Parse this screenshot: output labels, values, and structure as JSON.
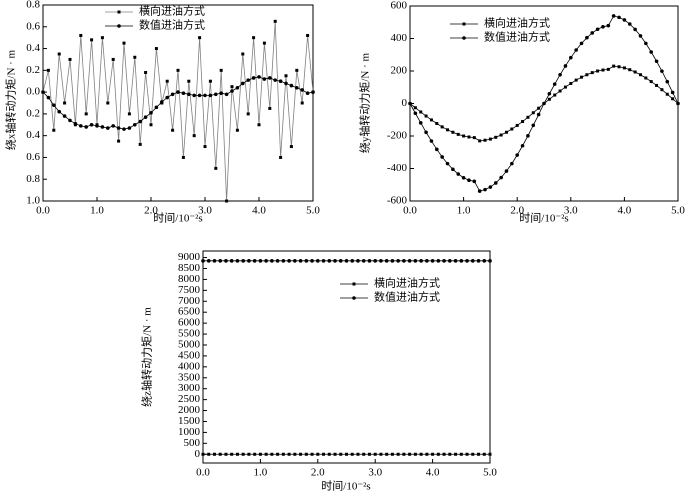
{
  "chart_data": [
    {
      "type": "line",
      "x_label": "时间/10⁻²s",
      "y_label": "绕x轴转动力矩/N · m",
      "x": [
        0,
        0.1,
        0.2,
        0.3,
        0.4,
        0.5,
        0.6,
        0.7,
        0.8,
        0.9,
        1,
        1.1,
        1.2,
        1.3,
        1.4,
        1.5,
        1.6,
        1.7,
        1.8,
        1.9,
        2,
        2.1,
        2.2,
        2.3,
        2.4,
        2.5,
        2.6,
        2.7,
        2.8,
        2.9,
        3,
        3.1,
        3.2,
        3.3,
        3.4,
        3.5,
        3.6,
        3.7,
        3.8,
        3.9,
        4,
        4.1,
        4.2,
        4.3,
        4.4,
        4.5,
        4.6,
        4.7,
        4.8,
        4.9,
        5
      ],
      "series": [
        {
          "name": "横向进油方式",
          "color": "#808080",
          "marker": "square",
          "values": [
            0,
            0.2,
            -0.35,
            0.35,
            -0.1,
            0.3,
            -0.3,
            0.52,
            -0.2,
            0.48,
            -0.3,
            0.5,
            -0.1,
            0.3,
            -0.45,
            0.45,
            -0.2,
            0.32,
            -0.48,
            0.18,
            -0.3,
            0.4,
            -0.1,
            0.1,
            -0.35,
            0.2,
            -0.6,
            0.1,
            -0.4,
            0.5,
            -0.5,
            0.1,
            -0.7,
            0.2,
            -1.0,
            0.05,
            -0.35,
            0.35,
            -0.2,
            0.5,
            -0.3,
            0.45,
            -0.15,
            0.65,
            -0.6,
            0.15,
            -0.5,
            0.2,
            -0.1,
            0.52,
            0
          ]
        },
        {
          "name": "数值进油方式",
          "color": "#000000",
          "marker": "circle",
          "values": [
            0,
            -0.05,
            -0.12,
            -0.18,
            -0.22,
            -0.26,
            -0.29,
            -0.31,
            -0.32,
            -0.3,
            -0.31,
            -0.32,
            -0.33,
            -0.31,
            -0.33,
            -0.34,
            -0.33,
            -0.3,
            -0.27,
            -0.23,
            -0.19,
            -0.14,
            -0.09,
            -0.05,
            -0.02,
            0,
            -0.01,
            -0.02,
            -0.03,
            -0.03,
            -0.03,
            -0.03,
            -0.02,
            -0.01,
            -0.02,
            0.01,
            0.04,
            0.08,
            0.11,
            0.13,
            0.14,
            0.12,
            0.13,
            0.11,
            0.1,
            0.08,
            0.06,
            0.04,
            0.02,
            -0.01,
            0
          ]
        }
      ],
      "xlim": [
        0,
        5
      ],
      "xticks": [
        {
          "value": 0,
          "label": "0.0"
        },
        {
          "value": 1,
          "label": "1.0"
        },
        {
          "value": 2,
          "label": "2.0"
        },
        {
          "value": 3,
          "label": "3.0"
        },
        {
          "value": 4,
          "label": "4.0"
        },
        {
          "value": 5,
          "label": "5.0"
        }
      ],
      "ylim": [
        -1.0,
        0.8
      ],
      "yticks": [
        0.8,
        0.6,
        0.4,
        0.2,
        {
          "value": 0,
          "label": "0.0"
        },
        {
          "value": -0.2,
          "label": "0.2"
        },
        {
          "value": -0.4,
          "label": "0.4"
        },
        {
          "value": -0.6,
          "label": "0.6"
        },
        {
          "value": -0.8,
          "label": "0.8"
        },
        {
          "value": -1.0,
          "label": "1.0"
        }
      ]
    },
    {
      "type": "line",
      "x_label": "时间/10⁻²s",
      "y_label": "绕y轴转动力矩/N · m",
      "x": [
        0,
        0.1,
        0.2,
        0.3,
        0.4,
        0.5,
        0.6,
        0.7,
        0.8,
        0.9,
        1,
        1.1,
        1.2,
        1.3,
        1.4,
        1.5,
        1.6,
        1.7,
        1.8,
        1.9,
        2,
        2.1,
        2.2,
        2.3,
        2.4,
        2.5,
        2.6,
        2.7,
        2.8,
        2.9,
        3,
        3.1,
        3.2,
        3.3,
        3.4,
        3.5,
        3.6,
        3.7,
        3.8,
        3.9,
        4,
        4.1,
        4.2,
        4.3,
        4.4,
        4.5,
        4.6,
        4.7,
        4.8,
        4.9,
        5
      ],
      "series": [
        {
          "name": "横向进油方式",
          "color": "#000000",
          "marker": "square",
          "values": [
            0,
            -26,
            -52,
            -77,
            -101,
            -123,
            -144,
            -162,
            -177,
            -190,
            -200,
            -206,
            -210,
            -230,
            -226,
            -219,
            -208,
            -194,
            -177,
            -157,
            -135,
            -111,
            -85,
            -57,
            -29,
            0,
            26,
            52,
            77,
            101,
            123,
            144,
            162,
            177,
            190,
            200,
            206,
            210,
            230,
            226,
            219,
            208,
            194,
            177,
            157,
            135,
            111,
            85,
            57,
            29,
            0
          ]
        },
        {
          "name": "数值进油方式",
          "color": "#000000",
          "marker": "circle",
          "values": [
            0,
            -60,
            -119,
            -177,
            -231,
            -282,
            -329,
            -370,
            -405,
            -434,
            -457,
            -472,
            -479,
            -539,
            -530,
            -514,
            -489,
            -456,
            -416,
            -370,
            -317,
            -260,
            -199,
            -134,
            -68,
            0,
            60,
            119,
            177,
            231,
            282,
            329,
            370,
            405,
            434,
            457,
            472,
            479,
            539,
            530,
            514,
            489,
            456,
            416,
            370,
            317,
            260,
            199,
            134,
            68,
            0
          ]
        }
      ],
      "xlim": [
        0,
        5
      ],
      "xticks": [
        {
          "value": 0,
          "label": "0.0"
        },
        {
          "value": 1,
          "label": "1.0"
        },
        {
          "value": 2,
          "label": "2.0"
        },
        {
          "value": 3,
          "label": "3.0"
        },
        {
          "value": 4,
          "label": "4.0"
        },
        {
          "value": 5,
          "label": "5.0"
        }
      ],
      "ylim": [
        -600,
        600
      ],
      "yticks": [
        600,
        400,
        200,
        0,
        -200,
        -400,
        -600
      ]
    },
    {
      "type": "line",
      "x_label": "时间/10⁻²s",
      "y_label": "绕z轴转动力矩/N · m",
      "x": [
        0,
        0.1,
        0.2,
        0.3,
        0.4,
        0.5,
        0.6,
        0.7,
        0.8,
        0.9,
        1,
        1.1,
        1.2,
        1.3,
        1.4,
        1.5,
        1.6,
        1.7,
        1.8,
        1.9,
        2,
        2.1,
        2.2,
        2.3,
        2.4,
        2.5,
        2.6,
        2.7,
        2.8,
        2.9,
        3,
        3.1,
        3.2,
        3.3,
        3.4,
        3.5,
        3.6,
        3.7,
        3.8,
        3.9,
        4,
        4.1,
        4.2,
        4.3,
        4.4,
        4.5,
        4.6,
        4.7,
        4.8,
        4.9,
        5
      ],
      "series": [
        {
          "name": "横向进油方式",
          "color": "#000000",
          "marker": "square",
          "values": [
            0,
            0,
            0,
            0,
            0,
            0,
            0,
            0,
            0,
            0,
            0,
            0,
            0,
            0,
            0,
            0,
            0,
            0,
            0,
            0,
            0,
            0,
            0,
            0,
            0,
            0,
            0,
            0,
            0,
            0,
            0,
            0,
            0,
            0,
            0,
            0,
            0,
            0,
            0,
            0,
            0,
            0,
            0,
            0,
            0,
            0,
            0,
            0,
            0,
            0,
            0
          ]
        },
        {
          "name": "数值进油方式",
          "color": "#000000",
          "marker": "circle",
          "values": [
            8850,
            8850,
            8850,
            8850,
            8850,
            8850,
            8850,
            8850,
            8850,
            8850,
            8850,
            8850,
            8850,
            8850,
            8850,
            8850,
            8850,
            8850,
            8850,
            8850,
            8850,
            8850,
            8850,
            8850,
            8850,
            8850,
            8850,
            8850,
            8850,
            8850,
            8850,
            8850,
            8850,
            8850,
            8850,
            8850,
            8850,
            8850,
            8850,
            8850,
            8850,
            8850,
            8850,
            8850,
            8850,
            8850,
            8850,
            8850,
            8850,
            8850,
            8850
          ]
        }
      ],
      "xlim": [
        0,
        5
      ],
      "xticks": [
        {
          "value": 0,
          "label": "0.0"
        },
        {
          "value": 1,
          "label": "1.0"
        },
        {
          "value": 2,
          "label": "2.0"
        },
        {
          "value": 3,
          "label": "3.0"
        },
        {
          "value": 4,
          "label": "4.0"
        },
        {
          "value": 5,
          "label": "5.0"
        }
      ],
      "ylim": [
        -400,
        9300
      ],
      "yticks": [
        9000,
        8500,
        8000,
        7500,
        7000,
        6500,
        6000,
        5500,
        5000,
        4500,
        4000,
        3500,
        3000,
        2500,
        2000,
        1500,
        1000,
        500,
        0
      ]
    }
  ]
}
